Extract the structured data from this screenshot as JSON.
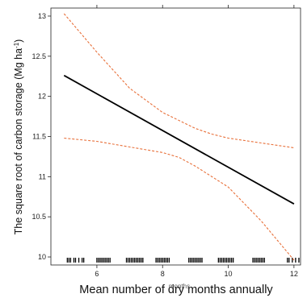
{
  "chart_data": {
    "type": "line",
    "xlabel": "Mean number of dry months annually",
    "xlabel_overlap": "months",
    "ylabel": "The square root of carbon storage (Mg ha",
    "ylabel_sup": "-1",
    "ylabel_close": ")",
    "xlim": [
      4.6,
      12.2
    ],
    "ylim": [
      9.9,
      13.1
    ],
    "x_ticks": [
      6,
      8,
      10,
      12
    ],
    "y_ticks": [
      10,
      10.5,
      11,
      11.5,
      12,
      12.5,
      13
    ],
    "x_tick_labels": [
      "6",
      "8",
      "10",
      "12"
    ],
    "y_tick_labels": [
      "10",
      "10.5",
      "11",
      "11.5",
      "12",
      "12.5",
      "13"
    ],
    "grid": false,
    "series": [
      {
        "role": "fit",
        "style": "solid",
        "color": "#000000",
        "x": [
          5.0,
          12.0
        ],
        "y": [
          12.26,
          10.66
        ]
      },
      {
        "role": "upper",
        "style": "dashed",
        "color": "#e8703a",
        "x": [
          5.0,
          6.0,
          7.0,
          8.0,
          9.0,
          9.5,
          10.0,
          11.0,
          12.0
        ],
        "y": [
          13.03,
          12.55,
          12.1,
          11.8,
          11.6,
          11.53,
          11.48,
          11.42,
          11.36
        ]
      },
      {
        "role": "lower",
        "style": "dashed",
        "color": "#e8703a",
        "x": [
          5.0,
          6.0,
          7.0,
          8.0,
          8.5,
          9.0,
          10.0,
          11.0,
          12.0
        ],
        "y": [
          11.48,
          11.44,
          11.37,
          11.3,
          11.24,
          11.13,
          10.87,
          10.45,
          9.96
        ]
      }
    ],
    "rug_x": [
      5.1,
      5.15,
      5.2,
      5.3,
      5.35,
      5.45,
      5.55,
      5.6,
      6.0,
      6.05,
      6.1,
      6.15,
      6.2,
      6.25,
      6.3,
      6.35,
      6.4,
      6.9,
      6.95,
      7.0,
      7.05,
      7.1,
      7.15,
      7.2,
      7.25,
      7.3,
      7.35,
      7.4,
      7.8,
      7.85,
      7.9,
      7.95,
      8.0,
      8.05,
      8.1,
      8.15,
      8.2,
      8.8,
      8.85,
      8.9,
      8.95,
      9.0,
      9.05,
      9.1,
      9.15,
      9.2,
      9.7,
      9.75,
      9.8,
      9.85,
      9.9,
      9.95,
      10.0,
      10.05,
      10.1,
      10.15,
      10.75,
      10.8,
      10.85,
      10.9,
      10.95,
      11.0,
      11.05,
      11.1,
      11.8,
      11.85,
      11.95,
      12.05,
      12.15
    ]
  }
}
